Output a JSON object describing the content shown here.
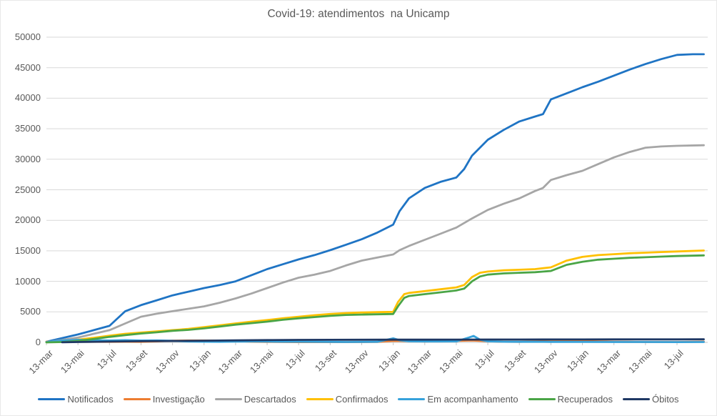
{
  "chart_data": {
    "type": "line",
    "title": "Covid-19: atendimentos  na Unicamp",
    "x_unit": "months since 13-mar-2020",
    "x_tick_labels": [
      "13-mar",
      "13-mai",
      "13-jul",
      "13-set",
      "13-nov",
      "13-jan",
      "13-mar",
      "13-mai",
      "13-jul",
      "13-set",
      "13-nov",
      "13-jan",
      "13-mar",
      "13-mai",
      "13-jul",
      "13-set",
      "13-nov",
      "13-jan",
      "13-mar",
      "13-mai",
      "13-jul"
    ],
    "x_tick_month_step": 2,
    "ylim": [
      0,
      50000
    ],
    "y_tick_labels": [
      "0",
      "5000",
      "10000",
      "15000",
      "20000",
      "25000",
      "30000",
      "35000",
      "40000",
      "45000",
      "50000"
    ],
    "grid": "horizontal",
    "legend_position": "bottom",
    "colors": {
      "grid": "#d9d9d9",
      "axis": "#c6c6c6",
      "tick": "#c6c6c6",
      "text": "#595959"
    },
    "series": [
      {
        "name": "Notificados",
        "key": "notificados",
        "color": "#1f74c4",
        "points": [
          [
            0,
            100
          ],
          [
            1,
            700
          ],
          [
            2,
            1300
          ],
          [
            3,
            2000
          ],
          [
            4,
            2700
          ],
          [
            5,
            5100
          ],
          [
            6,
            6100
          ],
          [
            7,
            6900
          ],
          [
            8,
            7700
          ],
          [
            9,
            8300
          ],
          [
            10,
            8900
          ],
          [
            11,
            9400
          ],
          [
            12,
            10000
          ],
          [
            13,
            11000
          ],
          [
            14,
            12000
          ],
          [
            15,
            12800
          ],
          [
            16,
            13600
          ],
          [
            17,
            14300
          ],
          [
            18,
            15100
          ],
          [
            19,
            16000
          ],
          [
            20,
            16900
          ],
          [
            21,
            18000
          ],
          [
            22,
            19300
          ],
          [
            22.4,
            21500
          ],
          [
            23,
            23600
          ],
          [
            24,
            25300
          ],
          [
            25,
            26300
          ],
          [
            26,
            27000
          ],
          [
            26.5,
            28400
          ],
          [
            27,
            30600
          ],
          [
            28,
            33200
          ],
          [
            29,
            34800
          ],
          [
            30,
            36200
          ],
          [
            31,
            37000
          ],
          [
            31.5,
            37400
          ],
          [
            32,
            39800
          ],
          [
            33,
            40800
          ],
          [
            34,
            41800
          ],
          [
            35,
            42700
          ],
          [
            36,
            43700
          ],
          [
            37,
            44700
          ],
          [
            38,
            45600
          ],
          [
            39,
            46400
          ],
          [
            40,
            47100
          ],
          [
            41,
            47200
          ],
          [
            41.7,
            47200
          ]
        ]
      },
      {
        "name": "Investigação",
        "key": "investigacao",
        "color": "#ed7d31",
        "points": [
          [
            0,
            120
          ],
          [
            1,
            160
          ],
          [
            2,
            110
          ],
          [
            3,
            90
          ],
          [
            4,
            90
          ],
          [
            5,
            110
          ],
          [
            6,
            90
          ],
          [
            7,
            160
          ],
          [
            8,
            280
          ],
          [
            9,
            300
          ],
          [
            10,
            300
          ],
          [
            11,
            280
          ],
          [
            12,
            240
          ],
          [
            13,
            110
          ],
          [
            14,
            80
          ],
          [
            15,
            60
          ],
          [
            16,
            50
          ],
          [
            17,
            50
          ],
          [
            18,
            50
          ],
          [
            19,
            50
          ],
          [
            20,
            60
          ],
          [
            21,
            70
          ],
          [
            22,
            260
          ],
          [
            23,
            210
          ],
          [
            24,
            150
          ],
          [
            25,
            190
          ],
          [
            26,
            260
          ],
          [
            27,
            310
          ],
          [
            27.5,
            260
          ],
          [
            28,
            200
          ],
          [
            29,
            110
          ],
          [
            30,
            90
          ],
          [
            31,
            160
          ],
          [
            32,
            260
          ],
          [
            33,
            300
          ],
          [
            34,
            250
          ],
          [
            35,
            150
          ],
          [
            36,
            100
          ],
          [
            37,
            80
          ],
          [
            38,
            60
          ],
          [
            39,
            60
          ],
          [
            40,
            60
          ],
          [
            41.7,
            120
          ]
        ]
      },
      {
        "name": "Descartados",
        "key": "descartados",
        "color": "#a6a6a6",
        "points": [
          [
            0,
            50
          ],
          [
            1,
            400
          ],
          [
            2,
            800
          ],
          [
            3,
            1400
          ],
          [
            4,
            2000
          ],
          [
            5,
            3100
          ],
          [
            6,
            4200
          ],
          [
            7,
            4700
          ],
          [
            8,
            5100
          ],
          [
            9,
            5500
          ],
          [
            10,
            5900
          ],
          [
            11,
            6500
          ],
          [
            12,
            7200
          ],
          [
            13,
            8000
          ],
          [
            14,
            8900
          ],
          [
            15,
            9800
          ],
          [
            16,
            10600
          ],
          [
            17,
            11100
          ],
          [
            18,
            11700
          ],
          [
            19,
            12600
          ],
          [
            20,
            13400
          ],
          [
            21,
            13900
          ],
          [
            22,
            14400
          ],
          [
            22.4,
            15100
          ],
          [
            23,
            15800
          ],
          [
            24,
            16800
          ],
          [
            25,
            17800
          ],
          [
            26,
            18800
          ],
          [
            27,
            20300
          ],
          [
            28,
            21700
          ],
          [
            29,
            22700
          ],
          [
            30,
            23600
          ],
          [
            31,
            24800
          ],
          [
            31.5,
            25300
          ],
          [
            32,
            26600
          ],
          [
            33,
            27400
          ],
          [
            34,
            28100
          ],
          [
            35,
            29200
          ],
          [
            36,
            30300
          ],
          [
            37,
            31200
          ],
          [
            38,
            31900
          ],
          [
            39,
            32100
          ],
          [
            40,
            32200
          ],
          [
            41.7,
            32300
          ]
        ]
      },
      {
        "name": "Confirmados",
        "key": "confirmados",
        "color": "#ffc000",
        "points": [
          [
            0,
            30
          ],
          [
            1,
            200
          ],
          [
            2,
            450
          ],
          [
            3,
            750
          ],
          [
            4,
            1100
          ],
          [
            5,
            1400
          ],
          [
            6,
            1600
          ],
          [
            7,
            1800
          ],
          [
            8,
            2000
          ],
          [
            9,
            2200
          ],
          [
            10,
            2500
          ],
          [
            11,
            2800
          ],
          [
            12,
            3100
          ],
          [
            13,
            3400
          ],
          [
            14,
            3650
          ],
          [
            15,
            3950
          ],
          [
            16,
            4200
          ],
          [
            17,
            4450
          ],
          [
            18,
            4650
          ],
          [
            19,
            4800
          ],
          [
            20,
            4900
          ],
          [
            21,
            4950
          ],
          [
            22,
            5000
          ],
          [
            22.3,
            6600
          ],
          [
            22.7,
            7900
          ],
          [
            23,
            8100
          ],
          [
            24,
            8400
          ],
          [
            25,
            8700
          ],
          [
            26,
            9000
          ],
          [
            26.5,
            9400
          ],
          [
            27,
            10700
          ],
          [
            27.5,
            11400
          ],
          [
            28,
            11600
          ],
          [
            29,
            11800
          ],
          [
            30,
            11900
          ],
          [
            31,
            12000
          ],
          [
            32,
            12300
          ],
          [
            33,
            13400
          ],
          [
            34,
            14000
          ],
          [
            35,
            14300
          ],
          [
            36,
            14450
          ],
          [
            37,
            14600
          ],
          [
            38,
            14700
          ],
          [
            39,
            14800
          ],
          [
            40,
            14900
          ],
          [
            41.7,
            15050
          ]
        ]
      },
      {
        "name": "Em acompanhamento",
        "key": "em-acompanhamento",
        "color": "#36a2db",
        "points": [
          [
            0,
            60
          ],
          [
            1,
            300
          ],
          [
            2,
            420
          ],
          [
            3,
            350
          ],
          [
            4,
            300
          ],
          [
            5,
            360
          ],
          [
            6,
            300
          ],
          [
            7,
            320
          ],
          [
            8,
            260
          ],
          [
            9,
            150
          ],
          [
            10,
            100
          ],
          [
            11,
            90
          ],
          [
            12,
            130
          ],
          [
            13,
            150
          ],
          [
            14,
            130
          ],
          [
            15,
            110
          ],
          [
            16,
            100
          ],
          [
            17,
            90
          ],
          [
            18,
            80
          ],
          [
            19,
            60
          ],
          [
            20,
            70
          ],
          [
            21,
            90
          ],
          [
            22,
            650
          ],
          [
            22.4,
            350
          ],
          [
            23,
            180
          ],
          [
            24,
            150
          ],
          [
            25,
            150
          ],
          [
            26,
            160
          ],
          [
            26.8,
            800
          ],
          [
            27.1,
            1050
          ],
          [
            27.5,
            450
          ],
          [
            28,
            180
          ],
          [
            29,
            100
          ],
          [
            30,
            90
          ],
          [
            32,
            80
          ],
          [
            34,
            70
          ],
          [
            36,
            60
          ],
          [
            38,
            60
          ],
          [
            40,
            50
          ],
          [
            41.7,
            60
          ]
        ]
      },
      {
        "name": "Recuperados",
        "key": "recuperados",
        "color": "#4aa546",
        "points": [
          [
            0,
            0
          ],
          [
            1,
            60
          ],
          [
            2,
            250
          ],
          [
            3,
            550
          ],
          [
            4,
            900
          ],
          [
            5,
            1200
          ],
          [
            6,
            1450
          ],
          [
            7,
            1650
          ],
          [
            8,
            1900
          ],
          [
            9,
            2050
          ],
          [
            10,
            2300
          ],
          [
            11,
            2600
          ],
          [
            12,
            2900
          ],
          [
            13,
            3150
          ],
          [
            14,
            3400
          ],
          [
            15,
            3700
          ],
          [
            16,
            3950
          ],
          [
            17,
            4150
          ],
          [
            18,
            4350
          ],
          [
            19,
            4500
          ],
          [
            20,
            4550
          ],
          [
            21,
            4600
          ],
          [
            22,
            4650
          ],
          [
            22.3,
            5900
          ],
          [
            22.7,
            7300
          ],
          [
            23,
            7600
          ],
          [
            24,
            7900
          ],
          [
            25,
            8200
          ],
          [
            26,
            8500
          ],
          [
            26.5,
            8800
          ],
          [
            27,
            10000
          ],
          [
            27.5,
            10800
          ],
          [
            28,
            11100
          ],
          [
            29,
            11300
          ],
          [
            30,
            11400
          ],
          [
            31,
            11500
          ],
          [
            32,
            11700
          ],
          [
            33,
            12700
          ],
          [
            34,
            13200
          ],
          [
            35,
            13550
          ],
          [
            36,
            13700
          ],
          [
            37,
            13850
          ],
          [
            38,
            13950
          ],
          [
            39,
            14050
          ],
          [
            40,
            14150
          ],
          [
            41.7,
            14250
          ]
        ]
      },
      {
        "name": "Óbitos",
        "key": "obitos",
        "color": "#1f3864",
        "points": [
          [
            1,
            10
          ],
          [
            2,
            60
          ],
          [
            4,
            130
          ],
          [
            6,
            190
          ],
          [
            8,
            230
          ],
          [
            10,
            280
          ],
          [
            12,
            330
          ],
          [
            14,
            380
          ],
          [
            16,
            410
          ],
          [
            18,
            420
          ],
          [
            20,
            430
          ],
          [
            22,
            440
          ],
          [
            24,
            450
          ],
          [
            26,
            460
          ],
          [
            28,
            470
          ],
          [
            30,
            472
          ],
          [
            32,
            477
          ],
          [
            34,
            481
          ],
          [
            36,
            486
          ],
          [
            38,
            491
          ],
          [
            40,
            496
          ],
          [
            41.7,
            500
          ]
        ]
      }
    ]
  }
}
